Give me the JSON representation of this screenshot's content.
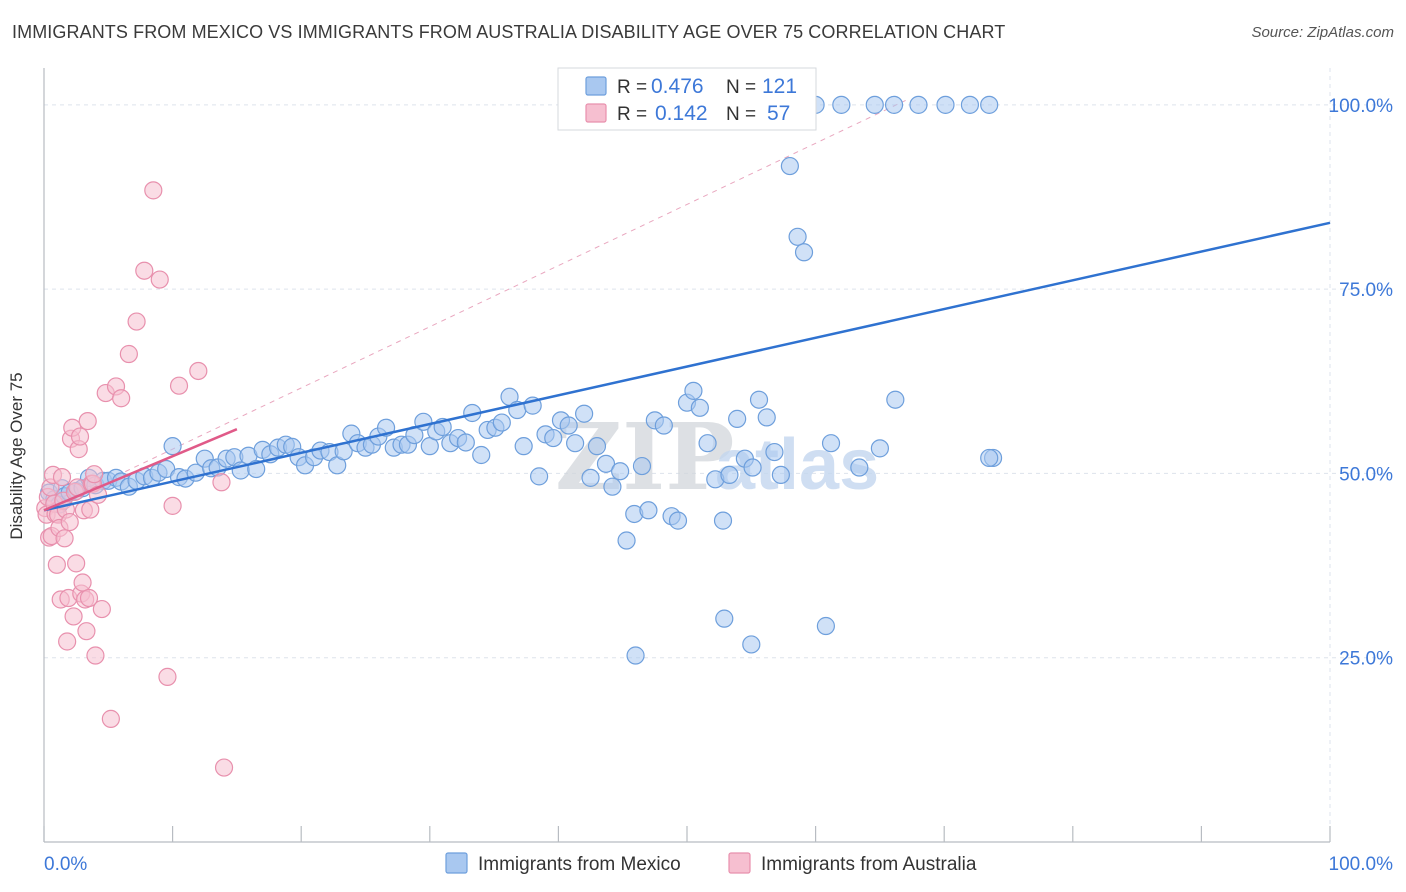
{
  "header": {
    "title": "IMMIGRANTS FROM MEXICO VS IMMIGRANTS FROM AUSTRALIA DISABILITY AGE OVER 75 CORRELATION CHART",
    "source": "Source: ZipAtlas.com"
  },
  "watermark": {
    "zip": "ZIP",
    "atlas": "atlas"
  },
  "colors": {
    "mexico_fill": "#a9c8f0",
    "mexico_stroke": "#6e9fdc",
    "mexico_line": "#2f72d0",
    "australia_fill": "#f6bfd0",
    "australia_stroke": "#e890ad",
    "australia_line": "#e05a88",
    "tick_label": "#3d78d8",
    "grid": "#dde3ec"
  },
  "legend_top": {
    "rows": [
      {
        "r_label": "R = ",
        "r_value": "0.476",
        "n_label": "N = ",
        "n_value": "121"
      },
      {
        "r_label": "R = ",
        "r_value": "0.142",
        "n_label": "N = ",
        "n_value": "57"
      }
    ]
  },
  "legend_bottom": {
    "items": [
      "Immigrants from Mexico",
      "Immigrants from Australia"
    ]
  },
  "chart_data": {
    "type": "scatter",
    "ylabel": "Disability Age Over 75",
    "xlim": [
      0,
      100
    ],
    "ylim": [
      0,
      105
    ],
    "x_tick_labels": [
      "0.0%",
      "100.0%"
    ],
    "y_ticks": [
      25,
      50,
      75,
      100
    ],
    "y_tick_labels": [
      "25.0%",
      "50.0%",
      "75.0%",
      "100.0%"
    ],
    "grid": true,
    "series": [
      {
        "name": "Immigrants from Mexico",
        "r": 0.476,
        "n": 121,
        "trend": {
          "x": [
            0,
            100
          ],
          "y": [
            45.0,
            84.0
          ]
        },
        "points": [
          [
            0.4,
            47.4
          ],
          [
            0.8,
            46.5
          ],
          [
            1.2,
            45.8
          ],
          [
            1.4,
            48.0
          ],
          [
            1.6,
            46.9
          ],
          [
            2.0,
            47.4
          ],
          [
            2.5,
            47.6
          ],
          [
            3.0,
            48.0
          ],
          [
            3.5,
            49.4
          ],
          [
            4.0,
            48.4
          ],
          [
            4.6,
            49.0
          ],
          [
            5.0,
            49.0
          ],
          [
            5.6,
            49.4
          ],
          [
            6.0,
            48.9
          ],
          [
            6.6,
            48.2
          ],
          [
            7.2,
            49.0
          ],
          [
            7.8,
            49.6
          ],
          [
            8.4,
            49.4
          ],
          [
            8.9,
            50.1
          ],
          [
            9.5,
            50.6
          ],
          [
            10.0,
            53.7
          ],
          [
            10.5,
            49.5
          ],
          [
            11.0,
            49.3
          ],
          [
            11.8,
            50.1
          ],
          [
            12.5,
            52.0
          ],
          [
            13.0,
            50.7
          ],
          [
            13.5,
            50.8
          ],
          [
            14.2,
            52.0
          ],
          [
            14.8,
            52.2
          ],
          [
            15.3,
            50.4
          ],
          [
            15.9,
            52.4
          ],
          [
            16.5,
            50.6
          ],
          [
            17.0,
            53.2
          ],
          [
            17.6,
            52.6
          ],
          [
            18.2,
            53.5
          ],
          [
            18.8,
            53.9
          ],
          [
            19.3,
            53.6
          ],
          [
            19.8,
            52.2
          ],
          [
            20.3,
            51.1
          ],
          [
            21.0,
            52.2
          ],
          [
            21.5,
            53.1
          ],
          [
            22.2,
            52.9
          ],
          [
            22.8,
            51.1
          ],
          [
            23.3,
            53.0
          ],
          [
            23.9,
            55.4
          ],
          [
            24.4,
            54.1
          ],
          [
            25.0,
            53.5
          ],
          [
            25.5,
            53.9
          ],
          [
            26.0,
            55.0
          ],
          [
            26.6,
            56.2
          ],
          [
            27.2,
            53.5
          ],
          [
            27.8,
            53.9
          ],
          [
            28.3,
            53.9
          ],
          [
            28.8,
            55.2
          ],
          [
            29.5,
            57.0
          ],
          [
            30.0,
            53.7
          ],
          [
            30.5,
            55.7
          ],
          [
            31.0,
            56.3
          ],
          [
            31.6,
            54.1
          ],
          [
            32.2,
            54.8
          ],
          [
            32.8,
            54.2
          ],
          [
            33.3,
            58.2
          ],
          [
            34.0,
            52.5
          ],
          [
            34.5,
            55.9
          ],
          [
            35.1,
            56.2
          ],
          [
            35.6,
            56.9
          ],
          [
            36.2,
            60.4
          ],
          [
            36.8,
            58.6
          ],
          [
            37.3,
            53.7
          ],
          [
            38.0,
            59.2
          ],
          [
            38.5,
            49.6
          ],
          [
            39.0,
            55.3
          ],
          [
            39.6,
            54.8
          ],
          [
            40.2,
            57.2
          ],
          [
            40.8,
            56.5
          ],
          [
            41.3,
            54.1
          ],
          [
            42.0,
            58.1
          ],
          [
            42.5,
            49.4
          ],
          [
            43.0,
            53.7
          ],
          [
            43.7,
            51.3
          ],
          [
            44.2,
            48.2
          ],
          [
            44.8,
            50.3
          ],
          [
            45.3,
            40.9
          ],
          [
            45.9,
            44.5
          ],
          [
            46.5,
            51.0
          ],
          [
            47.0,
            45.0
          ],
          [
            47.5,
            57.2
          ],
          [
            48.2,
            56.5
          ],
          [
            48.8,
            44.2
          ],
          [
            49.3,
            43.6
          ],
          [
            50.0,
            59.6
          ],
          [
            50.5,
            61.2
          ],
          [
            51.0,
            58.9
          ],
          [
            51.6,
            54.1
          ],
          [
            52.2,
            49.2
          ],
          [
            52.8,
            43.6
          ],
          [
            53.3,
            49.8
          ],
          [
            53.9,
            57.4
          ],
          [
            54.5,
            52.0
          ],
          [
            55.1,
            50.8
          ],
          [
            55.6,
            60.0
          ],
          [
            56.2,
            57.6
          ],
          [
            56.8,
            52.9
          ],
          [
            57.3,
            49.8
          ],
          [
            58.0,
            91.7
          ],
          [
            58.6,
            82.1
          ],
          [
            59.1,
            80.0
          ],
          [
            60.0,
            100.0
          ],
          [
            62.0,
            100.0
          ],
          [
            64.6,
            100.0
          ],
          [
            66.1,
            100.0
          ],
          [
            68.0,
            100.0
          ],
          [
            70.1,
            100.0
          ],
          [
            72.0,
            100.0
          ],
          [
            73.5,
            100.0
          ],
          [
            63.4,
            50.8
          ],
          [
            65.0,
            53.4
          ],
          [
            66.2,
            60.0
          ],
          [
            46.0,
            25.3
          ],
          [
            52.9,
            30.3
          ],
          [
            55.0,
            26.8
          ],
          [
            60.8,
            29.3
          ],
          [
            61.2,
            54.1
          ],
          [
            73.8,
            52.1
          ],
          [
            73.5,
            52.1
          ]
        ]
      },
      {
        "name": "Immigrants from Australia",
        "r": 0.142,
        "n": 57,
        "trend": {
          "x": [
            0,
            15
          ],
          "y": [
            45.0,
            56.0
          ]
        },
        "points": [
          [
            0.1,
            45.3
          ],
          [
            0.2,
            44.4
          ],
          [
            0.3,
            46.8
          ],
          [
            0.4,
            41.3
          ],
          [
            0.5,
            48.1
          ],
          [
            0.6,
            41.5
          ],
          [
            0.7,
            49.8
          ],
          [
            0.8,
            45.9
          ],
          [
            0.9,
            44.5
          ],
          [
            1.0,
            37.6
          ],
          [
            1.1,
            44.4
          ],
          [
            1.2,
            42.6
          ],
          [
            1.3,
            32.9
          ],
          [
            1.4,
            49.5
          ],
          [
            1.5,
            46.3
          ],
          [
            1.6,
            41.2
          ],
          [
            1.7,
            45.1
          ],
          [
            1.8,
            27.2
          ],
          [
            1.9,
            33.1
          ],
          [
            2.0,
            43.4
          ],
          [
            2.1,
            54.7
          ],
          [
            2.2,
            56.2
          ],
          [
            2.3,
            30.6
          ],
          [
            2.4,
            47.5
          ],
          [
            2.5,
            37.8
          ],
          [
            2.6,
            48.1
          ],
          [
            2.7,
            53.3
          ],
          [
            2.8,
            55.0
          ],
          [
            2.9,
            33.7
          ],
          [
            3.0,
            35.2
          ],
          [
            3.1,
            45.0
          ],
          [
            3.2,
            32.9
          ],
          [
            3.3,
            28.6
          ],
          [
            3.4,
            57.1
          ],
          [
            3.5,
            33.1
          ],
          [
            3.6,
            45.1
          ],
          [
            3.7,
            48.6
          ],
          [
            3.8,
            48.6
          ],
          [
            3.9,
            49.9
          ],
          [
            4.0,
            25.3
          ],
          [
            4.2,
            47.1
          ],
          [
            4.5,
            31.6
          ],
          [
            4.8,
            60.9
          ],
          [
            5.2,
            16.7
          ],
          [
            5.6,
            61.8
          ],
          [
            6.0,
            60.2
          ],
          [
            6.6,
            66.2
          ],
          [
            7.2,
            70.6
          ],
          [
            7.8,
            77.5
          ],
          [
            8.5,
            88.4
          ],
          [
            9.0,
            76.3
          ],
          [
            9.6,
            22.4
          ],
          [
            10.0,
            45.6
          ],
          [
            10.5,
            61.9
          ],
          [
            12.0,
            63.9
          ],
          [
            13.8,
            48.8
          ],
          [
            14.0,
            10.1
          ]
        ]
      }
    ]
  }
}
